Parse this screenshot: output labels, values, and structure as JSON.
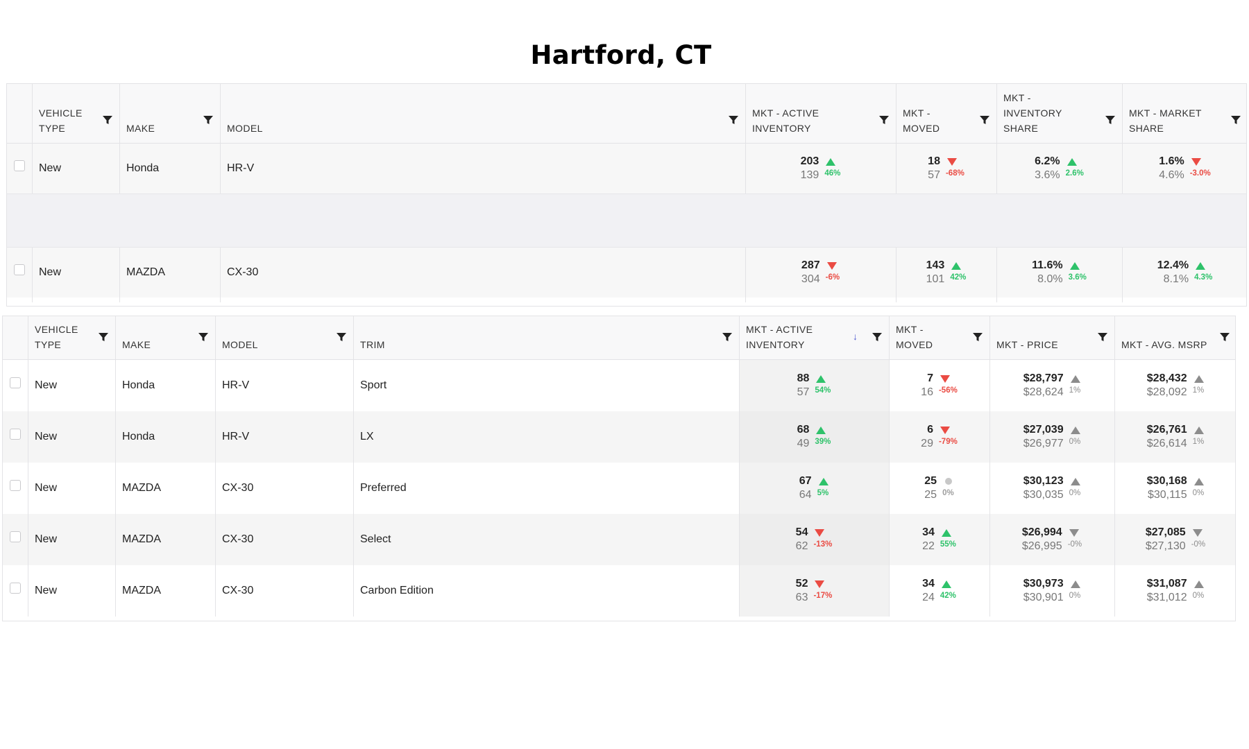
{
  "page": {
    "title": "Hartford, CT"
  },
  "colors": {
    "up": "#2ec26a",
    "down": "#ea4b43",
    "neutral": "#c8c8c8",
    "gray_arrow": "#8c8c8c",
    "sort": "#4e5ad1"
  },
  "grid1": {
    "columns": [
      {
        "label": "",
        "type": "checkbox"
      },
      {
        "label": "VEHICLE\nTYPE",
        "type": "text",
        "filter": true
      },
      {
        "label": "MAKE",
        "type": "text",
        "filter": true
      },
      {
        "label": "MODEL",
        "type": "text",
        "filter": true
      },
      {
        "label": "MKT - ACTIVE\nINVENTORY",
        "type": "metric",
        "filter": true
      },
      {
        "label": "MKT -\nMOVED",
        "type": "metric",
        "filter": true
      },
      {
        "label": "MKT -\nINVENTORY\nSHARE",
        "type": "metric",
        "filter": true
      },
      {
        "label": "MKT - MARKET\nSHARE",
        "type": "metric",
        "filter": true
      }
    ],
    "rows": [
      {
        "vehicle_type": "New",
        "make": "Honda",
        "model": "HR-V",
        "metrics": [
          {
            "current": "203",
            "previous": "139",
            "delta": "46%",
            "trend": "up"
          },
          {
            "current": "18",
            "previous": "57",
            "delta": "-68%",
            "trend": "down"
          },
          {
            "current": "6.2%",
            "previous": "3.6%",
            "delta": "2.6%",
            "trend": "up"
          },
          {
            "current": "1.6%",
            "previous": "4.6%",
            "delta": "-3.0%",
            "trend": "down"
          }
        ]
      },
      {
        "vehicle_type": "New",
        "make": "MAZDA",
        "model": "CX-30",
        "metrics": [
          {
            "current": "287",
            "previous": "304",
            "delta": "-6%",
            "trend": "down"
          },
          {
            "current": "143",
            "previous": "101",
            "delta": "42%",
            "trend": "up"
          },
          {
            "current": "11.6%",
            "previous": "8.0%",
            "delta": "3.6%",
            "trend": "up"
          },
          {
            "current": "12.4%",
            "previous": "8.1%",
            "delta": "4.3%",
            "trend": "up"
          }
        ]
      }
    ]
  },
  "grid2": {
    "columns": [
      {
        "label": "",
        "type": "checkbox"
      },
      {
        "label": "VEHICLE\nTYPE",
        "type": "text",
        "filter": true
      },
      {
        "label": "MAKE",
        "type": "text",
        "filter": true
      },
      {
        "label": "MODEL",
        "type": "text",
        "filter": true
      },
      {
        "label": "TRIM",
        "type": "text",
        "filter": true
      },
      {
        "label": "MKT - ACTIVE\nINVENTORY",
        "type": "metric",
        "filter": true,
        "sorted": "desc"
      },
      {
        "label": "MKT -\nMOVED",
        "type": "metric",
        "filter": true
      },
      {
        "label": "MKT - PRICE",
        "type": "metric",
        "filter": true
      },
      {
        "label": "MKT - AVG. MSRP",
        "type": "metric",
        "filter": true
      }
    ],
    "rows": [
      {
        "vehicle_type": "New",
        "make": "Honda",
        "model": "HR-V",
        "trim": "Sport",
        "metrics": [
          {
            "current": "88",
            "previous": "57",
            "delta": "54%",
            "trend": "up"
          },
          {
            "current": "7",
            "previous": "16",
            "delta": "-56%",
            "trend": "down"
          },
          {
            "current": "$28,797",
            "previous": "$28,624",
            "delta": "1%",
            "trend": "up",
            "muted": true
          },
          {
            "current": "$28,432",
            "previous": "$28,092",
            "delta": "1%",
            "trend": "up",
            "muted": true
          }
        ]
      },
      {
        "vehicle_type": "New",
        "make": "Honda",
        "model": "HR-V",
        "trim": "LX",
        "metrics": [
          {
            "current": "68",
            "previous": "49",
            "delta": "39%",
            "trend": "up"
          },
          {
            "current": "6",
            "previous": "29",
            "delta": "-79%",
            "trend": "down"
          },
          {
            "current": "$27,039",
            "previous": "$26,977",
            "delta": "0%",
            "trend": "up",
            "muted": true
          },
          {
            "current": "$26,761",
            "previous": "$26,614",
            "delta": "1%",
            "trend": "up",
            "muted": true
          }
        ]
      },
      {
        "vehicle_type": "New",
        "make": "MAZDA",
        "model": "CX-30",
        "trim": "Preferred",
        "metrics": [
          {
            "current": "67",
            "previous": "64",
            "delta": "5%",
            "trend": "up"
          },
          {
            "current": "25",
            "previous": "25",
            "delta": "0%",
            "trend": "neutral"
          },
          {
            "current": "$30,123",
            "previous": "$30,035",
            "delta": "0%",
            "trend": "up",
            "muted": true
          },
          {
            "current": "$30,168",
            "previous": "$30,115",
            "delta": "0%",
            "trend": "up",
            "muted": true
          }
        ]
      },
      {
        "vehicle_type": "New",
        "make": "MAZDA",
        "model": "CX-30",
        "trim": "Select",
        "metrics": [
          {
            "current": "54",
            "previous": "62",
            "delta": "-13%",
            "trend": "down"
          },
          {
            "current": "34",
            "previous": "22",
            "delta": "55%",
            "trend": "up"
          },
          {
            "current": "$26,994",
            "previous": "$26,995",
            "delta": "-0%",
            "trend": "down",
            "muted": true
          },
          {
            "current": "$27,085",
            "previous": "$27,130",
            "delta": "-0%",
            "trend": "down",
            "muted": true
          }
        ]
      },
      {
        "vehicle_type": "New",
        "make": "MAZDA",
        "model": "CX-30",
        "trim": "Carbon Edition",
        "metrics": [
          {
            "current": "52",
            "previous": "63",
            "delta": "-17%",
            "trend": "down"
          },
          {
            "current": "34",
            "previous": "24",
            "delta": "42%",
            "trend": "up"
          },
          {
            "current": "$30,973",
            "previous": "$30,901",
            "delta": "0%",
            "trend": "up",
            "muted": true
          },
          {
            "current": "$31,087",
            "previous": "$31,012",
            "delta": "0%",
            "trend": "up",
            "muted": true
          }
        ]
      }
    ]
  }
}
